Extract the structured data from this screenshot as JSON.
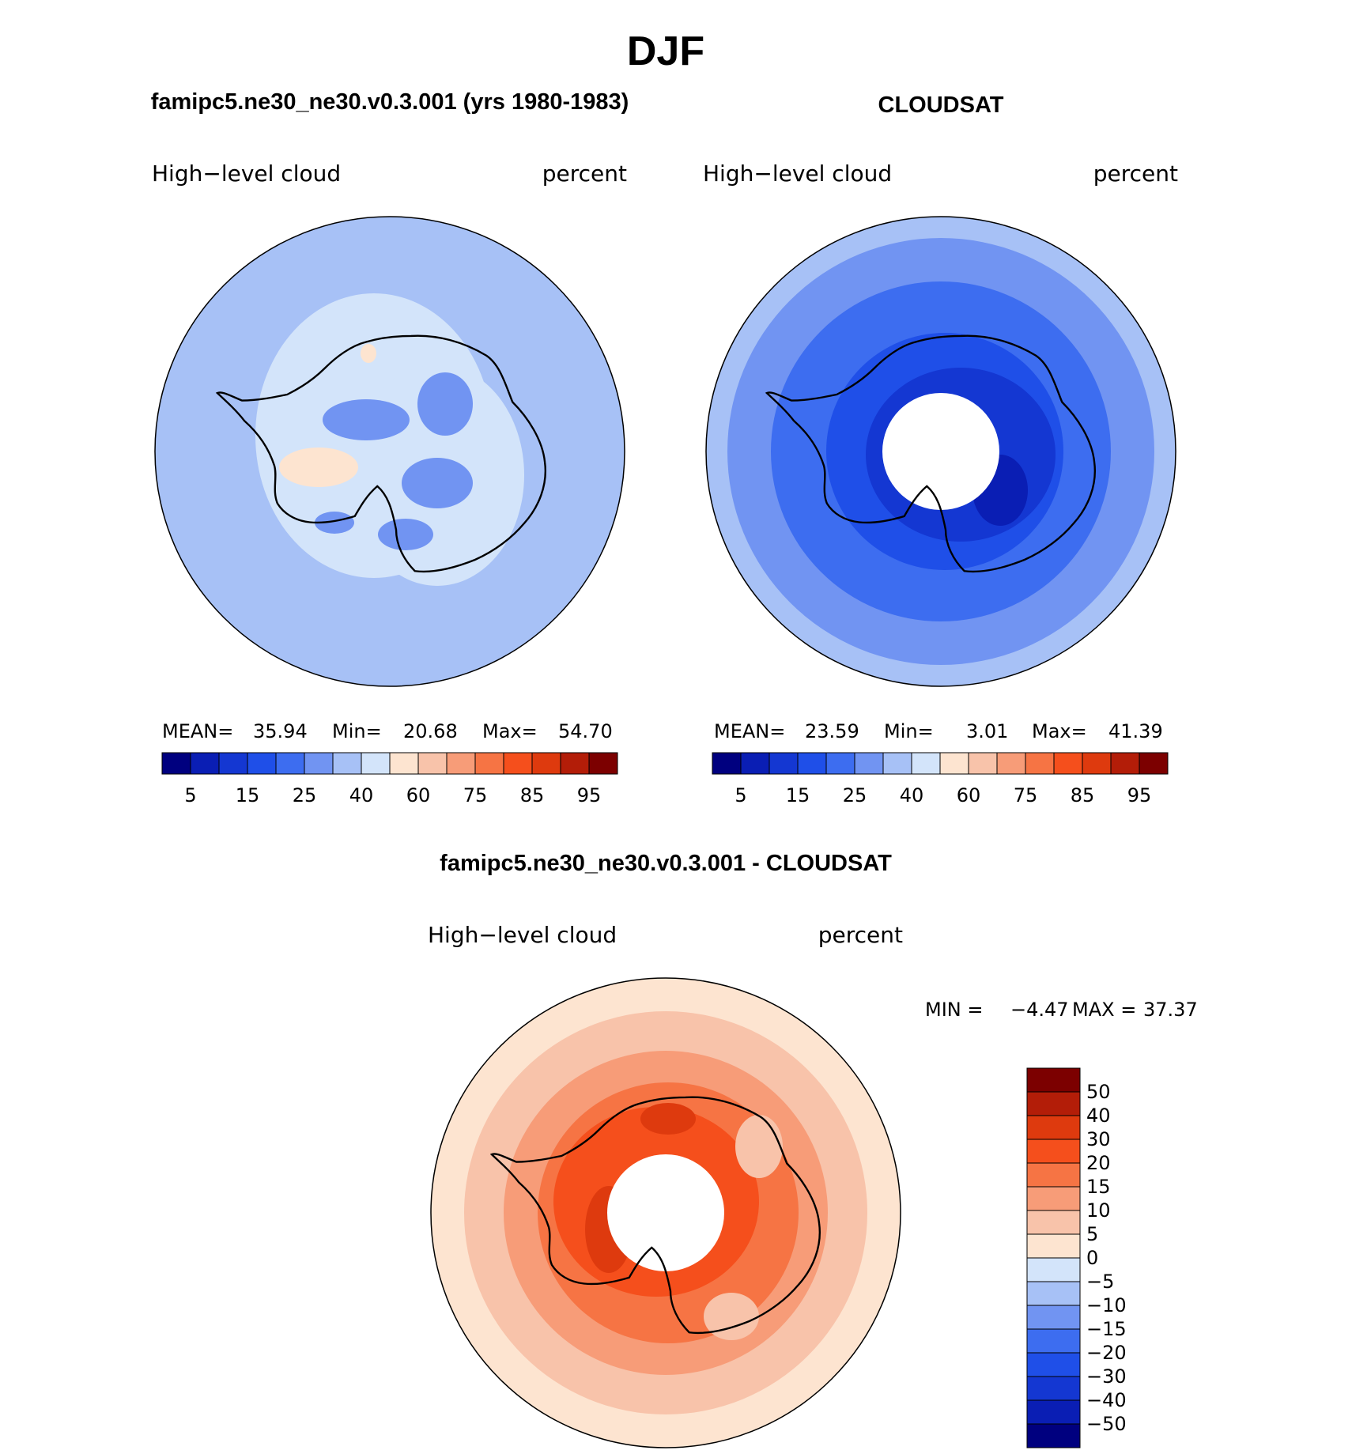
{
  "title": "DJF",
  "panels": [
    {
      "id": "model",
      "title": "famipc5.ne30_ne30.v0.3.001 (yrs 1980-1983)",
      "left_label": "High−level cloud",
      "right_label": "percent",
      "stats": {
        "mean_label": "MEAN=",
        "mean": "35.94",
        "min_label": "Min=",
        "min": "20.68",
        "max_label": "Max=",
        "max": "54.70"
      }
    },
    {
      "id": "obs",
      "title": "CLOUDSAT",
      "left_label": "High−level cloud",
      "right_label": "percent",
      "stats": {
        "mean_label": "MEAN=",
        "mean": "23.59",
        "min_label": "Min=",
        "min": "3.01",
        "max_label": "Max=",
        "max": "41.39"
      }
    },
    {
      "id": "diff",
      "title": "famipc5.ne30_ne30.v0.3.001 - CLOUDSAT",
      "left_label": "High−level cloud",
      "right_label": "percent",
      "stats": {
        "min_label": "MIN =",
        "min": "−4.47",
        "max_label": "MAX =",
        "max": "37.37"
      }
    }
  ],
  "colorbar_horizontal": {
    "colors": [
      "#00007f",
      "#0a1eb4",
      "#1437d2",
      "#1f4fe8",
      "#3d6df0",
      "#7194f2",
      "#a7c1f6",
      "#d3e4fa",
      "#fde4d0",
      "#f8c3aa",
      "#f79c78",
      "#f67444",
      "#f54f1c",
      "#de3a0e",
      "#b31d08",
      "#7c0000"
    ],
    "tick_labels": [
      "5",
      "15",
      "25",
      "40",
      "60",
      "75",
      "85",
      "95"
    ]
  },
  "colorbar_vertical": {
    "colors_top_to_bottom": [
      "#7c0000",
      "#b31d08",
      "#de3a0e",
      "#f54f1c",
      "#f67444",
      "#f79c78",
      "#f8c3aa",
      "#fde4d0",
      "#d3e4fa",
      "#a7c1f6",
      "#7194f2",
      "#3d6df0",
      "#1f4fe8",
      "#1437d2",
      "#0a1eb4",
      "#00007f"
    ],
    "tick_labels": [
      "50",
      "40",
      "30",
      "20",
      "15",
      "10",
      "5",
      "0",
      "−5",
      "−10",
      "−15",
      "−20",
      "−30",
      "−40",
      "−50"
    ]
  },
  "map_colors": {
    "model_base": "#a7c1f6",
    "model_lighter": "#d3e4fa",
    "model_mid": "#7194f2",
    "model_warm": "#fde4d0",
    "obs_outer": "#a7c1f6",
    "obs_mid": "#7194f2",
    "obs_ring": "#3d6df0",
    "obs_inner": "#1f4fe8",
    "obs_core": "#1437d2",
    "obs_dark": "#0a1eb4",
    "diff_outer": "#fde4d0",
    "diff_mid": "#f8c3aa",
    "diff_ring": "#f79c78",
    "diff_inner": "#f67444",
    "diff_core": "#f54f1c",
    "diff_dark": "#de3a0e",
    "coast": "#000000",
    "no_data": "#ffffff"
  }
}
